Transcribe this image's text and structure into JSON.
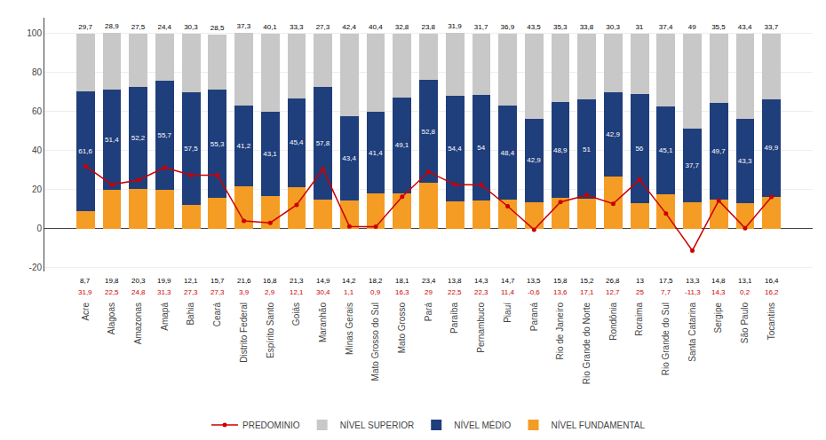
{
  "chart_data": {
    "type": "bar",
    "stacked": true,
    "categories": [
      "Acre",
      "Alagoas",
      "Amazonas",
      "Amapá",
      "Bahia",
      "Ceará",
      "Distrito Federal",
      "Espírito Santo",
      "Goiás",
      "Maranhão",
      "Minas Gerais",
      "Mato Grosso do Sul",
      "Mato Grosso",
      "Pará",
      "Paraíba",
      "Pernambuco",
      "Piauí",
      "Paraná",
      "Rio de Janeiro",
      "Rio Grande do Norte",
      "Rondônia",
      "Roraima",
      "Rio Grande do Sul",
      "Santa Catarina",
      "Sergipe",
      "São Paulo",
      "Tocantins"
    ],
    "series": [
      {
        "name": "NÍVEL FUNDAMENTAL",
        "type": "bar",
        "color": "#f59c25",
        "values": [
          8.7,
          19.8,
          20.3,
          19.9,
          12.1,
          15.7,
          21.6,
          16.8,
          21.3,
          14.9,
          14.2,
          18.2,
          18.1,
          23.4,
          13.8,
          14.3,
          14.7,
          13.5,
          15.8,
          15.2,
          26.8,
          13.0,
          17.5,
          13.3,
          14.8,
          13.1,
          16.4
        ],
        "value_labels": [
          "8,7",
          "19,8",
          "20,3",
          "19,9",
          "12,1",
          "15,7",
          "21,6",
          "16,8",
          "21,3",
          "14,9",
          "14,2",
          "18,2",
          "18,1",
          "23,4",
          "13,8",
          "14,3",
          "14,7",
          "13,5",
          "15,8",
          "15,2",
          "26,8",
          "13",
          "17,5",
          "13,3",
          "14,8",
          "13,1",
          "16,4"
        ]
      },
      {
        "name": "NÍVEL MÉDIO",
        "type": "bar",
        "color": "#1f3e7c",
        "values": [
          61.6,
          51.4,
          52.2,
          55.7,
          57.5,
          55.3,
          41.2,
          43.1,
          45.4,
          57.8,
          43.4,
          41.4,
          49.1,
          52.8,
          54.4,
          54.0,
          48.4,
          42.9,
          48.9,
          51.0,
          42.9,
          56.0,
          45.1,
          37.7,
          49.7,
          43.3,
          49.9
        ],
        "value_labels": [
          "61,6",
          "51,4",
          "52,2",
          "55,7",
          "57,5",
          "55,3",
          "41,2",
          "43,1",
          "45,4",
          "57,8",
          "43,4",
          "41,4",
          "49,1",
          "52,8",
          "54,4",
          "54",
          "48,4",
          "42,9",
          "48,9",
          "51",
          "42,9",
          "56",
          "45,1",
          "37,7",
          "49,7",
          "43,3",
          "49,9"
        ]
      },
      {
        "name": "NÍVEL SUPERIOR",
        "type": "bar",
        "color": "#c8c8c8",
        "values": [
          29.7,
          28.9,
          27.5,
          24.4,
          30.3,
          28.5,
          37.3,
          40.1,
          33.3,
          27.3,
          42.4,
          40.4,
          32.8,
          23.8,
          31.9,
          31.7,
          36.9,
          43.5,
          35.3,
          33.8,
          30.3,
          31.0,
          37.4,
          49.0,
          35.5,
          43.4,
          33.7
        ],
        "value_labels": [
          "29,7",
          "28,9",
          "27,5",
          "24,4",
          "30,3",
          "28,5",
          "37,3",
          "40,1",
          "33,3",
          "27,3",
          "42,4",
          "40,4",
          "32,8",
          "23,8",
          "31,9",
          "31,7",
          "36,9",
          "43,5",
          "35,3",
          "33,8",
          "30,3",
          "31",
          "37,4",
          "49",
          "35,5",
          "43,4",
          "33,7"
        ]
      },
      {
        "name": "PREDOMINIO",
        "type": "line",
        "marker": "circle",
        "color": "#cc0000",
        "values": [
          31.9,
          22.5,
          24.8,
          31.3,
          27.3,
          27.3,
          3.9,
          2.9,
          12.1,
          30.4,
          1.1,
          0.9,
          16.3,
          29.0,
          22.5,
          22.3,
          11.4,
          -0.6,
          13.6,
          17.1,
          12.7,
          25.0,
          7.7,
          -11.3,
          14.3,
          0.2,
          16.2
        ],
        "value_labels": [
          "31,9",
          "22,5",
          "24,8",
          "31,3",
          "27,3",
          "27,3",
          "3,9",
          "2,9",
          "12,1",
          "30,4",
          "1,1",
          "0,9",
          "16,3",
          "29",
          "22,5",
          "22,3",
          "11,4",
          "-0,6",
          "13,6",
          "17,1",
          "12,7",
          "25",
          "7,7",
          "-11,3",
          "14,3",
          "0,2",
          "16,2"
        ]
      }
    ],
    "ylim": [
      -22,
      108
    ],
    "yticks": [
      -20,
      0,
      20,
      40,
      60,
      80,
      100
    ],
    "grid": true,
    "data_labels": true,
    "legend": "bottom"
  }
}
